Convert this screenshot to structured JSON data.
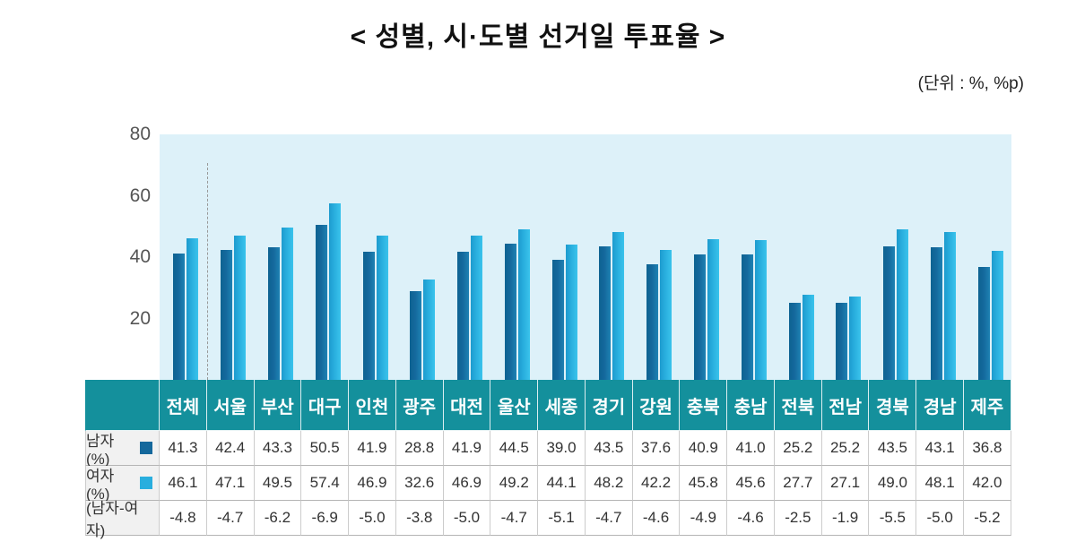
{
  "unit_note": "(단위 : %, %p)",
  "colors": {
    "male": "#14689c",
    "female": "#29aede",
    "plot_background": "#ddf1f9",
    "table_header_background": "#14909c"
  },
  "chart_data": {
    "type": "bar",
    "title": "< 성별, 시·도별 선거일 투표율 >",
    "categories": [
      "전체",
      "서울",
      "부산",
      "대구",
      "인천",
      "광주",
      "대전",
      "울산",
      "세종",
      "경기",
      "강원",
      "충북",
      "충남",
      "전북",
      "전남",
      "경북",
      "경남",
      "제주"
    ],
    "series": [
      {
        "name": "남자(%)",
        "color_key": "male",
        "bars": true,
        "values": [
          41.3,
          42.4,
          43.3,
          50.5,
          41.9,
          28.8,
          41.9,
          44.5,
          39.0,
          43.5,
          37.6,
          40.9,
          41.0,
          25.2,
          25.2,
          43.5,
          43.1,
          36.8
        ]
      },
      {
        "name": "여자(%)",
        "color_key": "female",
        "bars": true,
        "values": [
          46.1,
          47.1,
          49.5,
          57.4,
          46.9,
          32.6,
          46.9,
          49.2,
          44.1,
          48.2,
          42.2,
          45.8,
          45.6,
          27.7,
          27.1,
          49.0,
          48.1,
          42.0
        ]
      },
      {
        "name": "(남자-여자)",
        "color_key": null,
        "bars": false,
        "values": [
          -4.8,
          -4.7,
          -6.2,
          -6.9,
          -5.0,
          -3.8,
          -5.0,
          -4.7,
          -5.1,
          -4.7,
          -4.6,
          -4.9,
          -4.6,
          -2.5,
          -1.9,
          -5.5,
          -5.0,
          -5.2
        ]
      }
    ],
    "ylim": [
      0,
      80
    ],
    "yticks": [
      80,
      60,
      40,
      20
    ],
    "grid": false,
    "legend_position": "table-row-labels",
    "separator_after_category": "전체",
    "table_corner_label": ""
  }
}
